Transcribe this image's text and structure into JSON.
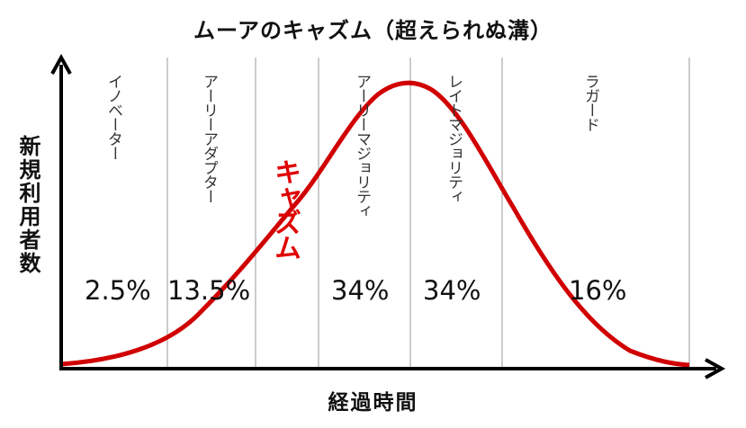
{
  "title": "ムーアのキャズム（超えられぬ溝）",
  "y_axis_label": "新規利用者数",
  "x_axis_label": "経過時間",
  "chasm_label": "キャズム",
  "colors": {
    "curve": "#d00000",
    "chasm": "#e00000",
    "axis": "#000000",
    "divider": "#999999"
  },
  "segments": [
    {
      "label": "イノベーター",
      "percent": "2.5%"
    },
    {
      "label": "アーリーアダプター",
      "percent": "13.5%"
    },
    {
      "label": "アーリーマジョリティ",
      "percent": "34%"
    },
    {
      "label": "レイトマジョリティ",
      "percent": "34%"
    },
    {
      "label": "ラガード",
      "percent": "16%"
    }
  ]
}
